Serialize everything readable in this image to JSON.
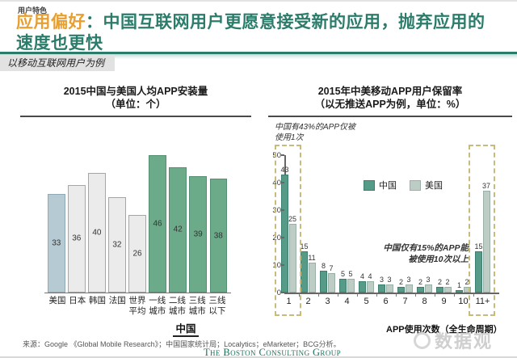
{
  "header": {
    "eyebrow": "用户特色",
    "title_highlight": "应用偏好",
    "title_line1": "：中国互联网用户更愿意接受新的应用，抛弃应用的",
    "title_line2": "速度也更快",
    "banner": "以移动互联网用户为例",
    "accent_teal": "#2b7c6a",
    "accent_orange": "#e89f32"
  },
  "chart_data": [
    {
      "type": "bar",
      "title": "2015中国与美国人均APP安装量",
      "subtitle": "（单位：个）",
      "ylim": [
        0,
        50
      ],
      "grid": false,
      "bars": [
        {
          "label": "美国",
          "value": 33,
          "fill": "#b6cad3",
          "stroke": "#8fa9b6"
        },
        {
          "label": "日本",
          "value": 36,
          "fill": "#ebebeb",
          "stroke": "#a6a6a6"
        },
        {
          "label": "韩国",
          "value": 40,
          "fill": "#ebebeb",
          "stroke": "#a6a6a6"
        },
        {
          "label": "法国",
          "value": 32,
          "fill": "#ebebeb",
          "stroke": "#a6a6a6"
        },
        {
          "label": "世界\n平均",
          "value": 26,
          "fill": "#ebebeb",
          "stroke": "#a6a6a6"
        },
        {
          "label": "一线\n城市",
          "value": 46,
          "fill": "#6cab89",
          "stroke": "#558f72"
        },
        {
          "label": "二线\n城市",
          "value": 42,
          "fill": "#6cab89",
          "stroke": "#558f72"
        },
        {
          "label": "三线\n城市",
          "value": 39,
          "fill": "#6cab89",
          "stroke": "#558f72"
        },
        {
          "label": "三线\n以下",
          "value": 38,
          "fill": "#6cab89",
          "stroke": "#558f72"
        }
      ],
      "group_label": "中国"
    },
    {
      "type": "bar",
      "title": "2015年中美移动APP用户保留率",
      "subtitle": "（以无推送APP为例，单位：%）",
      "xlabel": "APP使用次数（全生命周期）",
      "ylim": [
        0,
        50
      ],
      "yticks": [
        0,
        10,
        20,
        30,
        40,
        50
      ],
      "legend_position": "top-center",
      "categories": [
        "1",
        "2",
        "3",
        "4",
        "5",
        "6",
        "7",
        "8",
        "9",
        "10",
        "11+"
      ],
      "series": [
        {
          "name": "中国",
          "fill": "#569a88",
          "stroke": "#3d7f6e",
          "values": [
            43,
            15,
            8,
            5,
            4,
            3,
            2,
            2,
            2,
            1,
            15
          ]
        },
        {
          "name": "美国",
          "fill": "#bdccc5",
          "stroke": "#9ab0a6",
          "values": [
            25,
            11,
            7,
            5,
            4,
            3,
            3,
            3,
            2,
            2,
            37
          ]
        }
      ],
      "annotation_top": "中国有43%的APP仅被\n使用1次",
      "annotation_mid": "中国仅有15%的APP能\n被使用10次以上",
      "highlighted_categories": [
        "1",
        "11+"
      ],
      "highlight_color": "#c7bc7a"
    }
  ],
  "footer": {
    "source": "来源：Google 《Global Mobile Research》；中国国家统计局；Localytics；eMarketer；BCG分析。",
    "brand": "The Boston Consulting Group",
    "watermark": "数据观"
  }
}
